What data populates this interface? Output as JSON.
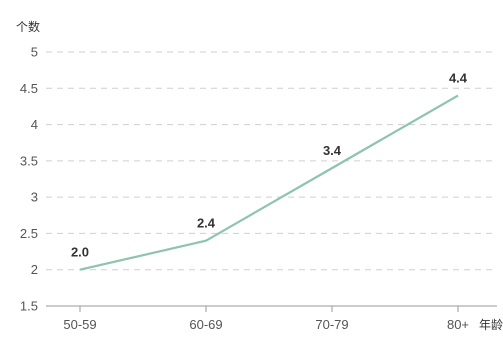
{
  "chart_data": {
    "type": "line",
    "title": "",
    "ylabel": "个数",
    "xlabel": "年龄",
    "categories": [
      "50-59",
      "60-69",
      "70-79",
      "80+"
    ],
    "series": [
      {
        "values": [
          2.0,
          2.4,
          3.4,
          4.4
        ]
      }
    ],
    "data_labels": [
      "2.0",
      "2.4",
      "3.4",
      "4.4"
    ],
    "y_ticks": [
      "1.5",
      "2",
      "2.5",
      "3",
      "3.5",
      "4",
      "4.5",
      "5"
    ],
    "ylim": [
      1.5,
      5
    ],
    "grid": true,
    "line_color": "#8dc4ad",
    "grid_color": "#cfcfcf",
    "axis_color": "#9a9a9a"
  }
}
